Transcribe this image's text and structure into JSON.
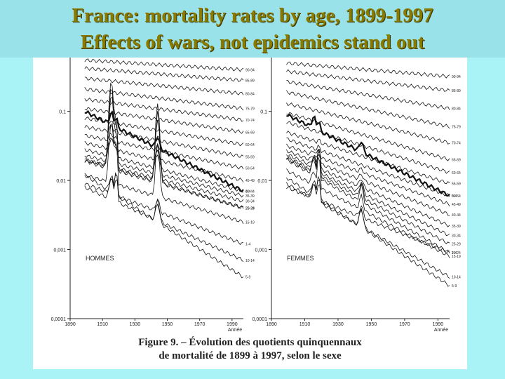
{
  "slide": {
    "title_line1": "France:  mortality rates by age, 1899-1997",
    "title_line2": "Effects of wars, not epidemics stand out"
  },
  "figure": {
    "caption_line1": "Figure 9. – Évolution des quotients quinquennaux",
    "caption_line2": "de mortalité de 1899 à 1997, selon le sexe"
  },
  "colors": {
    "title_text": "#8a7a00",
    "title_band": "#99e2ea",
    "background": "#a9f2f6",
    "curve": "#111111"
  },
  "chart_data": [
    {
      "type": "line",
      "panel_label": "HOMMES",
      "xlabel": "Année",
      "scale_y": "log",
      "ylim": [
        0.0001,
        0.6
      ],
      "xlim": [
        1890,
        1997
      ],
      "x_ticks": [
        "1890",
        "1910",
        "1930",
        "1950",
        "1970",
        "1990"
      ],
      "x_tick_values": [
        1890,
        1910,
        1930,
        1950,
        1970,
        1990
      ],
      "y_ticks": [
        "0,1",
        "0,01",
        "0,001",
        "0,0001"
      ],
      "y_tick_values": [
        0.1,
        0.01,
        0.001,
        0.0001
      ],
      "series": [
        {
          "name": "90-94",
          "start": 0.55,
          "end": 0.4,
          "war": 0,
          "flu": 0
        },
        {
          "name": "85-89",
          "start": 0.42,
          "end": 0.28,
          "war": 0,
          "flu": 0
        },
        {
          "name": "80-84",
          "start": 0.3,
          "end": 0.18,
          "war": 0,
          "flu": 0
        },
        {
          "name": "75-79",
          "start": 0.21,
          "end": 0.11,
          "war": 0,
          "flu": 0
        },
        {
          "name": "70-74",
          "start": 0.15,
          "end": 0.075,
          "war": 0,
          "flu": 0
        },
        {
          "name": "65-69",
          "start": 0.11,
          "end": 0.05,
          "war": 0,
          "flu": 0
        },
        {
          "name": "60-64",
          "start": 0.08,
          "end": 0.033,
          "war": 0,
          "flu": 0
        },
        {
          "name": "55-59",
          "start": 0.06,
          "end": 0.022,
          "war": 0.01,
          "flu": 0.005
        },
        {
          "name": "50-54",
          "start": 0.045,
          "end": 0.015,
          "war": 0.01,
          "flu": 0.006
        },
        {
          "name": "45-49",
          "start": 0.035,
          "end": 0.01,
          "war": 0.015,
          "flu": 0.01
        },
        {
          "name": "40-44",
          "start": 0.028,
          "end": 0.007,
          "war": 0.02,
          "flu": 0.012
        },
        {
          "name": "35-39",
          "start": 0.023,
          "end": 0.006,
          "war": 0.05,
          "flu": 0.02
        },
        {
          "name": "30-34",
          "start": 0.02,
          "end": 0.005,
          "war": 0.15,
          "flu": 0.04
        },
        {
          "name": "25-29",
          "start": 0.019,
          "end": 0.004,
          "war": 0.2,
          "flu": 0.06
        },
        {
          "name": "20-24",
          "start": 0.02,
          "end": 0.004,
          "war": 0.25,
          "flu": 0.07
        },
        {
          "name": "15-19",
          "start": 0.012,
          "end": 0.0025,
          "war": 0.06,
          "flu": 0.03
        },
        {
          "name": "10-14",
          "start": 0.008,
          "end": 0.0007,
          "war": 0.006,
          "flu": 0.012
        },
        {
          "name": "5-9",
          "start": 0.012,
          "end": 0.0004,
          "war": 0.005,
          "flu": 0.01
        },
        {
          "name": "0-4",
          "start": 0.1,
          "end": 0.007,
          "war": 0.03,
          "flu": 0.03,
          "bold": true
        },
        {
          "name": "1-4",
          "start": 0.009,
          "end": 0.0012,
          "war": 0.004,
          "flu": 0.006
        }
      ]
    },
    {
      "type": "line",
      "panel_label": "FEMMES",
      "xlabel": "Année",
      "scale_y": "log",
      "ylim": [
        0.0001,
        0.6
      ],
      "xlim": [
        1890,
        1997
      ],
      "x_ticks": [
        "1890",
        "1910",
        "1930",
        "1950",
        "1970",
        "1990"
      ],
      "x_tick_values": [
        1890,
        1910,
        1930,
        1950,
        1970,
        1990
      ],
      "y_ticks": [
        "0,1",
        "0,01",
        "0,001",
        "0,0001"
      ],
      "y_tick_values": [
        0.1,
        0.01,
        0.001,
        0.0001
      ],
      "series": [
        {
          "name": "90-94",
          "start": 0.5,
          "end": 0.32,
          "war": 0,
          "flu": 0
        },
        {
          "name": "85-89",
          "start": 0.38,
          "end": 0.2,
          "war": 0,
          "flu": 0
        },
        {
          "name": "80-84",
          "start": 0.27,
          "end": 0.11,
          "war": 0,
          "flu": 0
        },
        {
          "name": "75-79",
          "start": 0.19,
          "end": 0.06,
          "war": 0,
          "flu": 0
        },
        {
          "name": "70-74",
          "start": 0.13,
          "end": 0.035,
          "war": 0,
          "flu": 0
        },
        {
          "name": "65-69",
          "start": 0.095,
          "end": 0.02,
          "war": 0,
          "flu": 0
        },
        {
          "name": "60-64",
          "start": 0.07,
          "end": 0.013,
          "war": 0,
          "flu": 0
        },
        {
          "name": "55-59",
          "start": 0.05,
          "end": 0.009,
          "war": 0,
          "flu": 0.004
        },
        {
          "name": "50-54",
          "start": 0.04,
          "end": 0.006,
          "war": 0,
          "flu": 0.005
        },
        {
          "name": "45-49",
          "start": 0.032,
          "end": 0.0045,
          "war": 0.004,
          "flu": 0.008
        },
        {
          "name": "40-44",
          "start": 0.027,
          "end": 0.0032,
          "war": 0.005,
          "flu": 0.01
        },
        {
          "name": "35-39",
          "start": 0.024,
          "end": 0.0022,
          "war": 0.006,
          "flu": 0.015
        },
        {
          "name": "30-34",
          "start": 0.022,
          "end": 0.0016,
          "war": 0.007,
          "flu": 0.02
        },
        {
          "name": "25-29",
          "start": 0.021,
          "end": 0.0012,
          "war": 0.008,
          "flu": 0.025
        },
        {
          "name": "20-24",
          "start": 0.02,
          "end": 0.0009,
          "war": 0.008,
          "flu": 0.025
        },
        {
          "name": "15-19",
          "start": 0.014,
          "end": 0.0008,
          "war": 0.005,
          "flu": 0.02
        },
        {
          "name": "10-14",
          "start": 0.009,
          "end": 0.0004,
          "war": 0.004,
          "flu": 0.01
        },
        {
          "name": "5-9",
          "start": 0.011,
          "end": 0.0003,
          "war": 0.004,
          "flu": 0.008
        },
        {
          "name": "0-4",
          "start": 0.09,
          "end": 0.006,
          "war": 0.025,
          "flu": 0.025,
          "bold": true
        },
        {
          "name": "1-4",
          "start": 0.008,
          "end": 0.0009,
          "war": 0.003,
          "flu": 0.005
        }
      ]
    }
  ]
}
